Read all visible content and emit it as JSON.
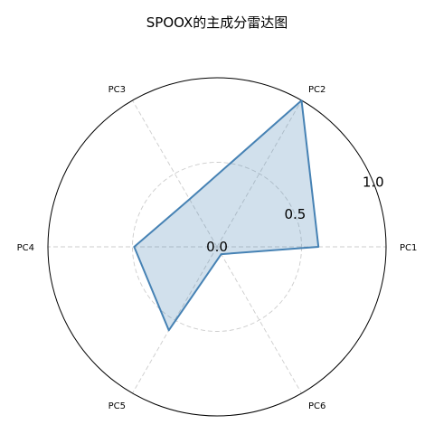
{
  "chart_data": {
    "type": "radar",
    "title": "SPOOX的主成分雷达图",
    "axes": [
      "PC1",
      "PC2",
      "PC3",
      "PC4",
      "PC5",
      "PC6"
    ],
    "values": [
      0.6,
      1.0,
      0.325,
      0.49,
      0.57,
      0.05
    ],
    "rlim": [
      0,
      1.0
    ],
    "rticks": [
      0.0,
      0.5,
      1.0
    ],
    "rtick_labels": [
      "0.0",
      "0.5",
      "1.0"
    ],
    "grid": true,
    "colors": {
      "line": "#4682b4",
      "fill": "#4682b4",
      "grid": "#cccccc",
      "frame": "#000000"
    }
  }
}
